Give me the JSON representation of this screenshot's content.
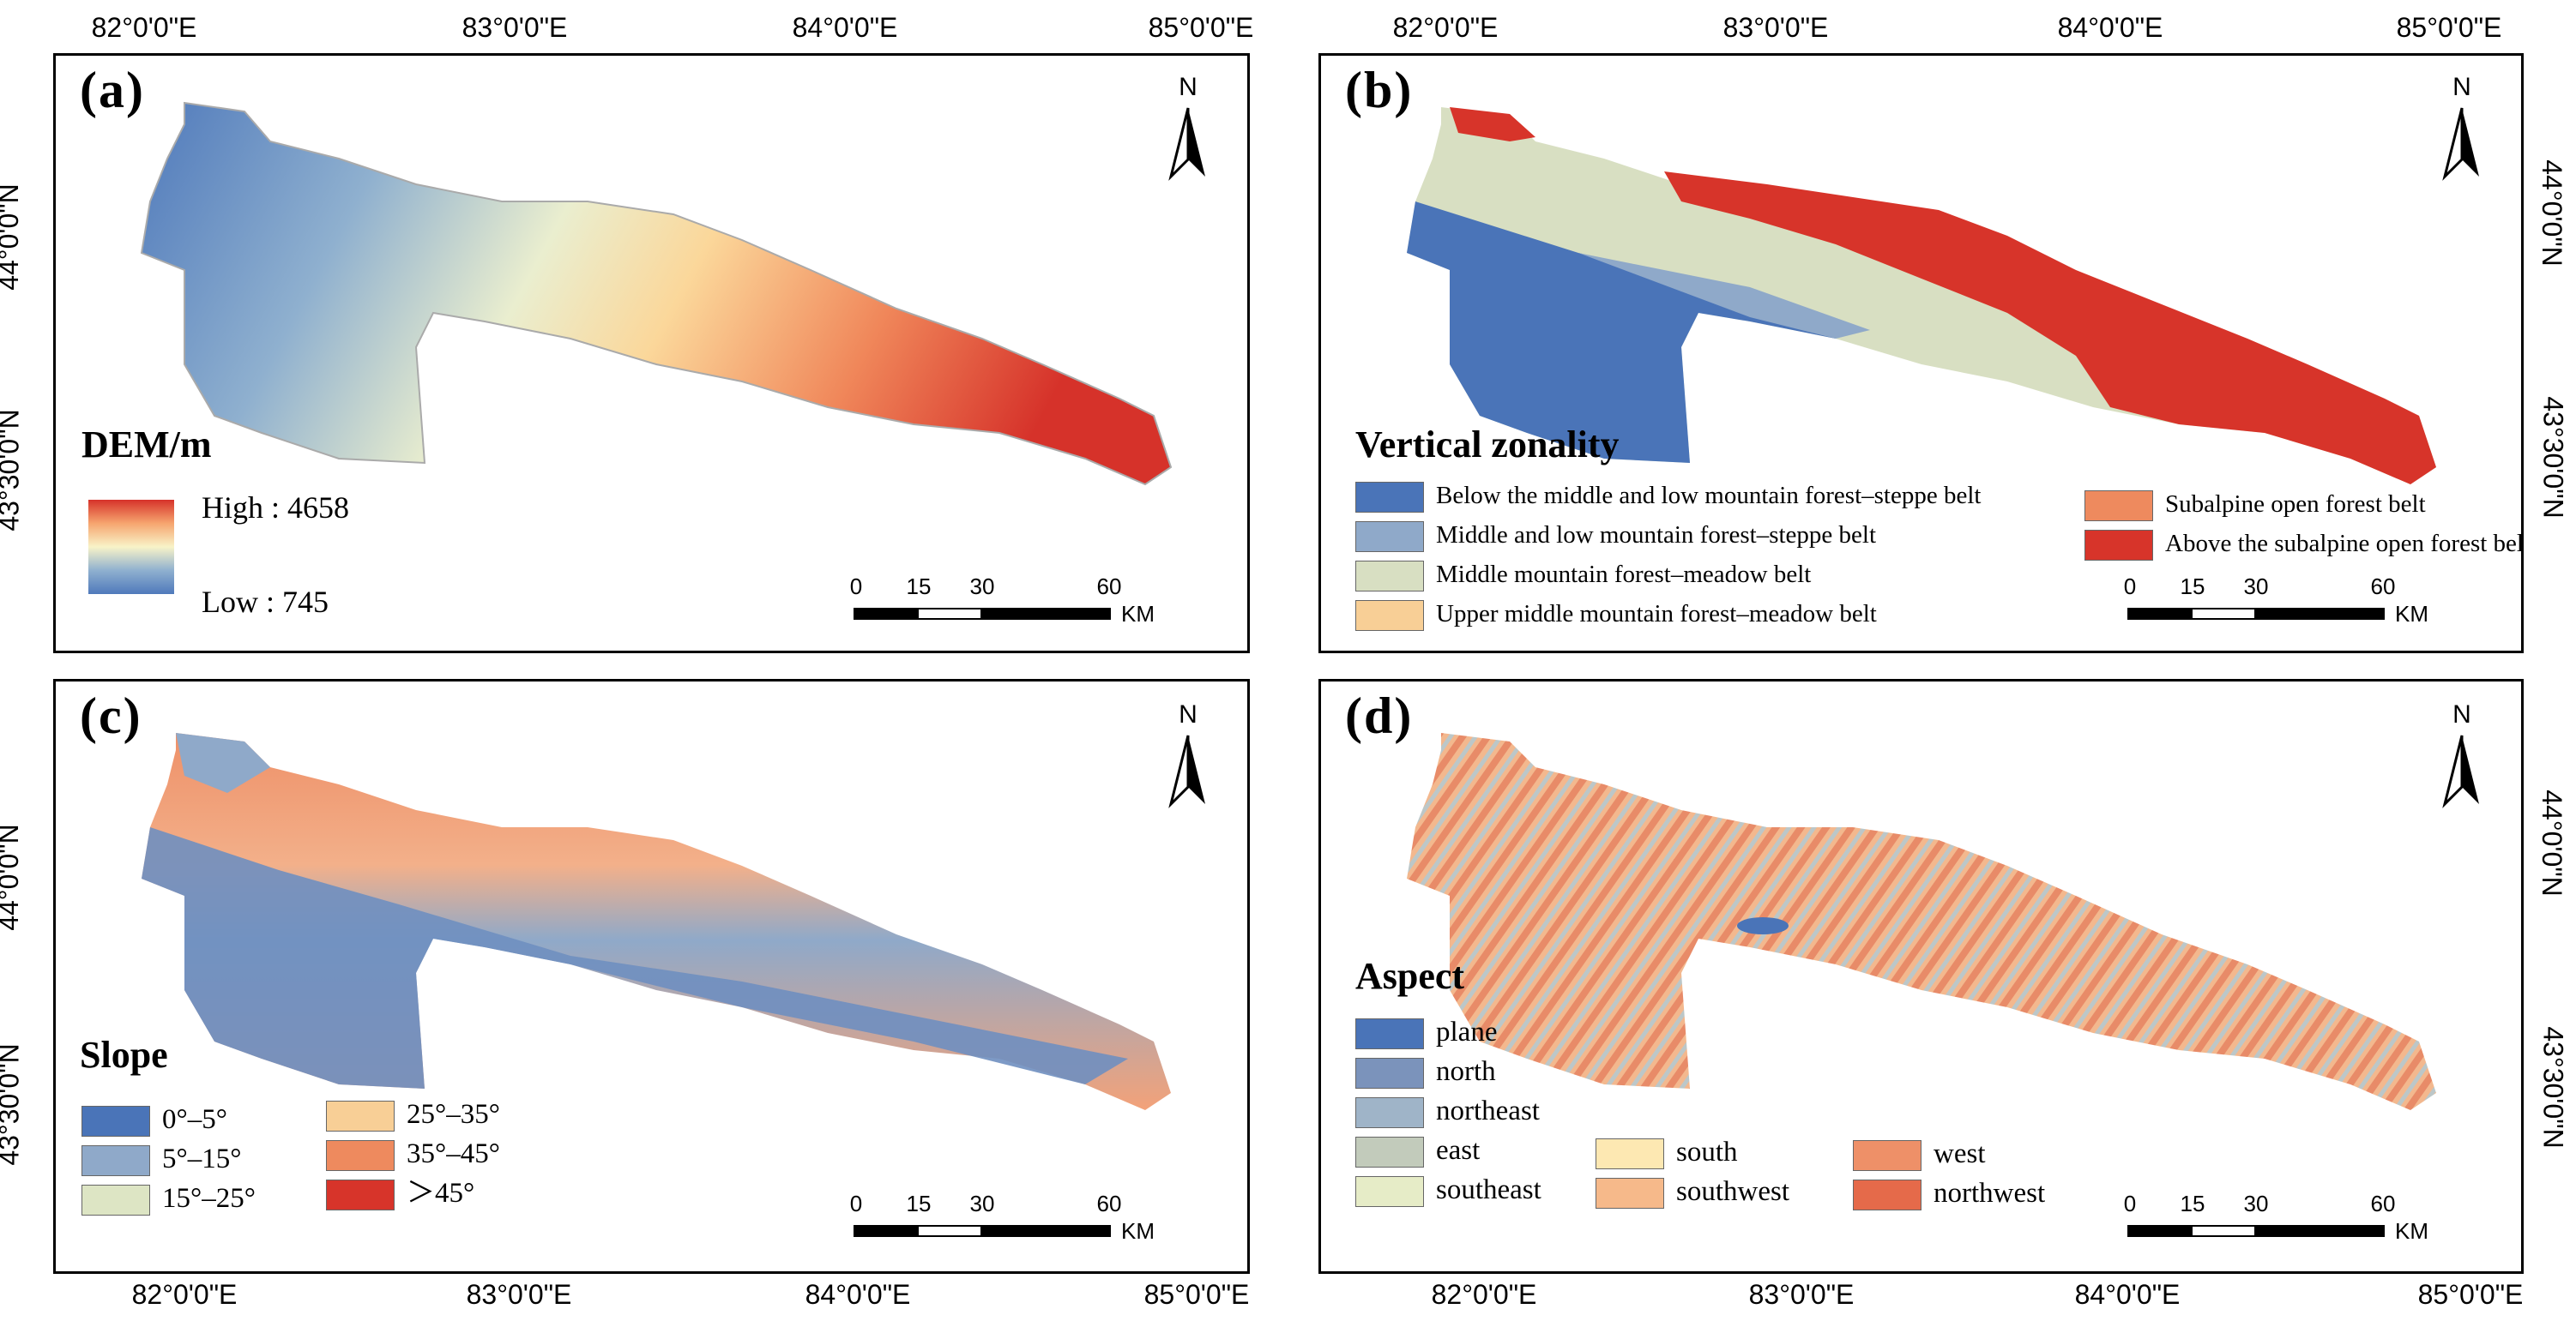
{
  "panels": {
    "a": {
      "label": "(a)",
      "legend_title": "DEM/m",
      "high": "High : 4658",
      "low": "Low : 745"
    },
    "b": {
      "label": "(b)",
      "legend_title": "Vertical zonality",
      "classes": [
        {
          "name": "Below the middle and low mountain forest–steppe belt",
          "color": "#4a74b8"
        },
        {
          "name": "Middle and low mountain forest–steppe belt",
          "color": "#8fa9c9"
        },
        {
          "name": "Middle mountain forest–meadow belt",
          "color": "#d8dfc2"
        },
        {
          "name": "Upper middle mountain forest–meadow belt",
          "color": "#f8cf96"
        },
        {
          "name": "Subalpine open forest belt",
          "color": "#ee8a5e"
        },
        {
          "name": "Above the subalpine open forest belt",
          "color": "#d7342a"
        }
      ]
    },
    "c": {
      "label": "(c)",
      "legend_title": "Slope",
      "classes": [
        {
          "name": "0°–5°",
          "color": "#4a74b8"
        },
        {
          "name": "5°–15°",
          "color": "#8fa9c9"
        },
        {
          "name": "15°–25°",
          "color": "#dde5c4"
        },
        {
          "name": "25°–35°",
          "color": "#f8cf96"
        },
        {
          "name": "35°–45°",
          "color": "#ee8a5e"
        },
        {
          "name": "＞45°",
          "color": "#d7342a"
        }
      ]
    },
    "d": {
      "label": "(d)",
      "legend_title": "Aspect",
      "classes": [
        {
          "name": "plane",
          "color": "#4a74b8"
        },
        {
          "name": "north",
          "color": "#7b93bb"
        },
        {
          "name": "northeast",
          "color": "#9fb4c8"
        },
        {
          "name": "east",
          "color": "#c2cbbb"
        },
        {
          "name": "southeast",
          "color": "#e6ecc7"
        },
        {
          "name": "south",
          "color": "#fde8b2"
        },
        {
          "name": "southwest",
          "color": "#f6b98a"
        },
        {
          "name": "west",
          "color": "#ee9068"
        },
        {
          "name": "northwest",
          "color": "#e56a4a"
        }
      ]
    }
  },
  "longitudes": [
    "82°0'0\"E",
    "83°0'0\"E",
    "84°0'0\"E",
    "85°0'0\"E"
  ],
  "latitudes": [
    "44°0'0\"N",
    "43°30'0\"N"
  ],
  "north_label": "N",
  "scale": {
    "ticks": [
      "0",
      "15",
      "30",
      "60"
    ],
    "unit": "KM"
  }
}
